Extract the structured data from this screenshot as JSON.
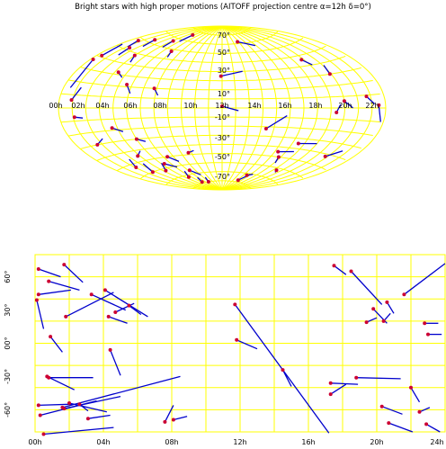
{
  "title": "Bright stars with high proper motions (AITOFF projection centre α=12h δ=0°)",
  "colors": {
    "grid": "#ffff00",
    "vector": "#0000cc",
    "star": "#cc0033",
    "label": "#000000",
    "background": "#ffffff"
  },
  "chart_data": [
    {
      "type": "scatter",
      "projection": "aitoff",
      "centre": {
        "ra_h": 12,
        "dec_deg": 0
      },
      "grid": true,
      "ra_tick_labels": [
        "00h",
        "02h",
        "04h",
        "06h",
        "08h",
        "10h",
        "12h",
        "14h",
        "16h",
        "18h",
        "20h",
        "22h"
      ],
      "dec_tick_labels": [
        "70°",
        "50°",
        "30°",
        "10°",
        "-10°",
        "-30°",
        "-50°",
        "-70°"
      ],
      "stars": [
        {
          "ra": 0.2,
          "dec": 37,
          "ra2": 0.5,
          "dec2": 15
        },
        {
          "ra": 0.4,
          "dec": 41,
          "ra2": 0.2,
          "dec2": 52
        },
        {
          "ra": 0.7,
          "dec": 58,
          "ra2": 1.1,
          "dec2": 52
        },
        {
          "ra": 0.9,
          "dec": 6,
          "ra2": 1.3,
          "dec2": 16
        },
        {
          "ra": 1.1,
          "dec": -7,
          "ra2": 1.7,
          "dec2": -8
        },
        {
          "ra": 1.4,
          "dec": 52,
          "ra2": 1.6,
          "dec2": 45
        },
        {
          "ra": 1.6,
          "dec": -30,
          "ra2": 2.4,
          "dec2": -26
        },
        {
          "ra": 1.9,
          "dec": 63,
          "ra2": 2.3,
          "dec2": 56
        },
        {
          "ra": 2.1,
          "dec": -53,
          "ra2": 2.7,
          "dec2": -46
        },
        {
          "ra": 2.7,
          "dec": -60,
          "ra2": 3.3,
          "dec2": -52
        },
        {
          "ra": 3.0,
          "dec": 48,
          "ra2": 3.4,
          "dec2": 42
        },
        {
          "ra": 3.3,
          "dec": 32,
          "ra2": 3.9,
          "dec2": 28
        },
        {
          "ra": 3.6,
          "dec": -18,
          "ra2": 4.3,
          "dec2": -22
        },
        {
          "ra": 3.8,
          "dec": -45,
          "ra2": 4.5,
          "dec2": -41
        },
        {
          "ra": 4.1,
          "dec": 67,
          "ra2": 4.3,
          "dec2": 60
        },
        {
          "ra": 4.3,
          "dec": -62,
          "ra2": 5.1,
          "dec2": -55
        },
        {
          "ra": 4.6,
          "dec": 22,
          "ra2": 5.1,
          "dec2": 14
        },
        {
          "ra": 4.8,
          "dec": 76,
          "ra2": 5.0,
          "dec2": 68
        },
        {
          "ra": 5.0,
          "dec": -30,
          "ra2": 5.6,
          "dec2": -33
        },
        {
          "ra": 5.3,
          "dec": -56,
          "ra2": 6.2,
          "dec2": -61
        },
        {
          "ra": 5.6,
          "dec": -72,
          "ra2": 6.4,
          "dec2": -66
        },
        {
          "ra": 5.9,
          "dec": 58,
          "ra2": 6.2,
          "dec2": 52
        },
        {
          "ra": 6.1,
          "dec": -79,
          "ra2": 6.9,
          "dec2": -74
        },
        {
          "ra": 6.4,
          "dec": -50,
          "ra2": 7.1,
          "dec2": -56
        },
        {
          "ra": 6.8,
          "dec": 20,
          "ra2": 7.2,
          "dec2": 13
        },
        {
          "ra": 7.2,
          "dec": -66,
          "ra2": 8.1,
          "dec2": -72
        },
        {
          "ra": 7.8,
          "dec": -80,
          "ra2": 8.4,
          "dec2": -75
        },
        {
          "ra": 8.7,
          "dec": -48,
          "ra2": 9.3,
          "dec2": -46
        },
        {
          "ra": 11.9,
          "dec": 35,
          "ra2": 13.8,
          "dec2": 40
        },
        {
          "ra": 12.0,
          "dec": 2,
          "ra2": 13.2,
          "dec2": -3
        },
        {
          "ra": 14.8,
          "dec": 72,
          "ra2": 16.9,
          "dec2": 66
        },
        {
          "ra": 15.4,
          "dec": -22,
          "ra2": 16.8,
          "dec2": -8
        },
        {
          "ra": 16.2,
          "dec": -78,
          "ra2": 16.9,
          "dec2": -71
        },
        {
          "ra": 16.6,
          "dec": -72,
          "ra2": 17.3,
          "dec2": -70
        },
        {
          "ra": 17.3,
          "dec": -45,
          "ra2": 18.7,
          "dec2": -43
        },
        {
          "ra": 17.8,
          "dec": -50,
          "ra2": 18.1,
          "dec2": -56
        },
        {
          "ra": 18.5,
          "dec": -35,
          "ra2": 20.0,
          "dec2": -33
        },
        {
          "ra": 19.4,
          "dec": -62,
          "ra2": 19.7,
          "dec2": -64
        },
        {
          "ra": 19.8,
          "dec": 46,
          "ra2": 20.2,
          "dec2": 40
        },
        {
          "ra": 20.4,
          "dec": -4,
          "ra2": 20.7,
          "dec2": 3
        },
        {
          "ra": 20.9,
          "dec": 30,
          "ra2": 21.1,
          "dec2": 38
        },
        {
          "ra": 21.0,
          "dec": 6,
          "ra2": 21.6,
          "dec2": 0
        },
        {
          "ra": 21.8,
          "dec": -42,
          "ra2": 22.6,
          "dec2": -35
        },
        {
          "ra": 22.7,
          "dec": 9,
          "ra2": 23.2,
          "dec2": 3
        },
        {
          "ra": 23.5,
          "dec": 2,
          "ra2": 23.8,
          "dec2": -10
        }
      ]
    },
    {
      "type": "scatter",
      "projection": "rectangular",
      "grid": true,
      "x_tick_labels": [
        "00h",
        "04h",
        "08h",
        "12h",
        "16h",
        "20h",
        "24h"
      ],
      "y_tick_labels": [
        "60°",
        "30°",
        "00°",
        "-30°",
        "-60°"
      ],
      "xlim": [
        0,
        24
      ],
      "ylim": [
        -80,
        80
      ],
      "stars": [
        {
          "ra": 0.1,
          "dec": 39,
          "ra2": 0.5,
          "dec2": 13
        },
        {
          "ra": 0.2,
          "dec": 44,
          "ra2": 2.1,
          "dec2": 48
        },
        {
          "ra": 0.2,
          "dec": 67,
          "ra2": 1.5,
          "dec2": 60
        },
        {
          "ra": 0.8,
          "dec": 56,
          "ra2": 2.6,
          "dec2": 48
        },
        {
          "ra": 1.7,
          "dec": 71,
          "ra2": 2.8,
          "dec2": 55
        },
        {
          "ra": 1.8,
          "dec": 24,
          "ra2": 4.6,
          "dec2": 46
        },
        {
          "ra": 0.9,
          "dec": 6,
          "ra2": 1.6,
          "dec2": -8
        },
        {
          "ra": 0.7,
          "dec": -30,
          "ra2": 2.3,
          "dec2": -42
        },
        {
          "ra": 0.8,
          "dec": -31,
          "ra2": 3.4,
          "dec2": -31
        },
        {
          "ra": 0.2,
          "dec": -56,
          "ra2": 2.2,
          "dec2": -55
        },
        {
          "ra": 0.3,
          "dec": -65,
          "ra2": 3.6,
          "dec2": -52
        },
        {
          "ra": 0.5,
          "dec": -82,
          "ra2": 4.6,
          "dec2": -76
        },
        {
          "ra": 1.6,
          "dec": -58,
          "ra2": 8.5,
          "dec2": -30
        },
        {
          "ra": 1.7,
          "dec": -59,
          "ra2": 5.0,
          "dec2": -48
        },
        {
          "ra": 2.0,
          "dec": -54,
          "ra2": 4.2,
          "dec2": -62
        },
        {
          "ra": 2.6,
          "dec": -55,
          "ra2": 3.1,
          "dec2": -61
        },
        {
          "ra": 3.1,
          "dec": -68,
          "ra2": 4.4,
          "dec2": -65
        },
        {
          "ra": 3.3,
          "dec": 44,
          "ra2": 5.3,
          "dec2": 30
        },
        {
          "ra": 4.1,
          "dec": 48,
          "ra2": 6.6,
          "dec2": 24
        },
        {
          "ra": 4.3,
          "dec": 24,
          "ra2": 5.4,
          "dec2": 18
        },
        {
          "ra": 4.4,
          "dec": -6,
          "ra2": 5.0,
          "dec2": -29
        },
        {
          "ra": 4.7,
          "dec": 28,
          "ra2": 5.8,
          "dec2": 36
        },
        {
          "ra": 5.5,
          "dec": 34,
          "ra2": 6.2,
          "dec2": 26
        },
        {
          "ra": 7.6,
          "dec": -71,
          "ra2": 8.1,
          "dec2": -56
        },
        {
          "ra": 8.1,
          "dec": -69,
          "ra2": 8.9,
          "dec2": -66
        },
        {
          "ra": 11.7,
          "dec": 35,
          "ra2": 17.2,
          "dec2": -81
        },
        {
          "ra": 11.8,
          "dec": 3,
          "ra2": 13.0,
          "dec2": -5
        },
        {
          "ra": 14.5,
          "dec": -24,
          "ra2": 15.0,
          "dec2": -39
        },
        {
          "ra": 17.5,
          "dec": 70,
          "ra2": 18.2,
          "dec2": 62
        },
        {
          "ra": 18.5,
          "dec": 65,
          "ra2": 20.3,
          "dec2": 35
        },
        {
          "ra": 19.4,
          "dec": 19,
          "ra2": 20.0,
          "dec2": 23
        },
        {
          "ra": 19.8,
          "dec": 31,
          "ra2": 20.6,
          "dec2": 18
        },
        {
          "ra": 20.4,
          "dec": 20,
          "ra2": 20.8,
          "dec2": 27
        },
        {
          "ra": 20.6,
          "dec": 37,
          "ra2": 21.0,
          "dec2": 27
        },
        {
          "ra": 17.3,
          "dec": -36,
          "ra2": 18.9,
          "dec2": -37
        },
        {
          "ra": 17.3,
          "dec": -46,
          "ra2": 18.2,
          "dec2": -37
        },
        {
          "ra": 18.8,
          "dec": -31,
          "ra2": 21.4,
          "dec2": -32
        },
        {
          "ra": 20.3,
          "dec": -57,
          "ra2": 21.5,
          "dec2": -64
        },
        {
          "ra": 20.7,
          "dec": -72,
          "ra2": 22.1,
          "dec2": -80
        },
        {
          "ra": 21.6,
          "dec": 44,
          "ra2": 24.0,
          "dec2": 72
        },
        {
          "ra": 22.8,
          "dec": 18,
          "ra2": 23.6,
          "dec2": 18
        },
        {
          "ra": 23.0,
          "dec": 8,
          "ra2": 23.8,
          "dec2": 8
        },
        {
          "ra": 22.0,
          "dec": -40,
          "ra2": 22.5,
          "dec2": -53
        },
        {
          "ra": 22.5,
          "dec": -62,
          "ra2": 23.1,
          "dec2": -58
        },
        {
          "ra": 22.9,
          "dec": -73,
          "ra2": 23.7,
          "dec2": -80
        }
      ]
    }
  ]
}
